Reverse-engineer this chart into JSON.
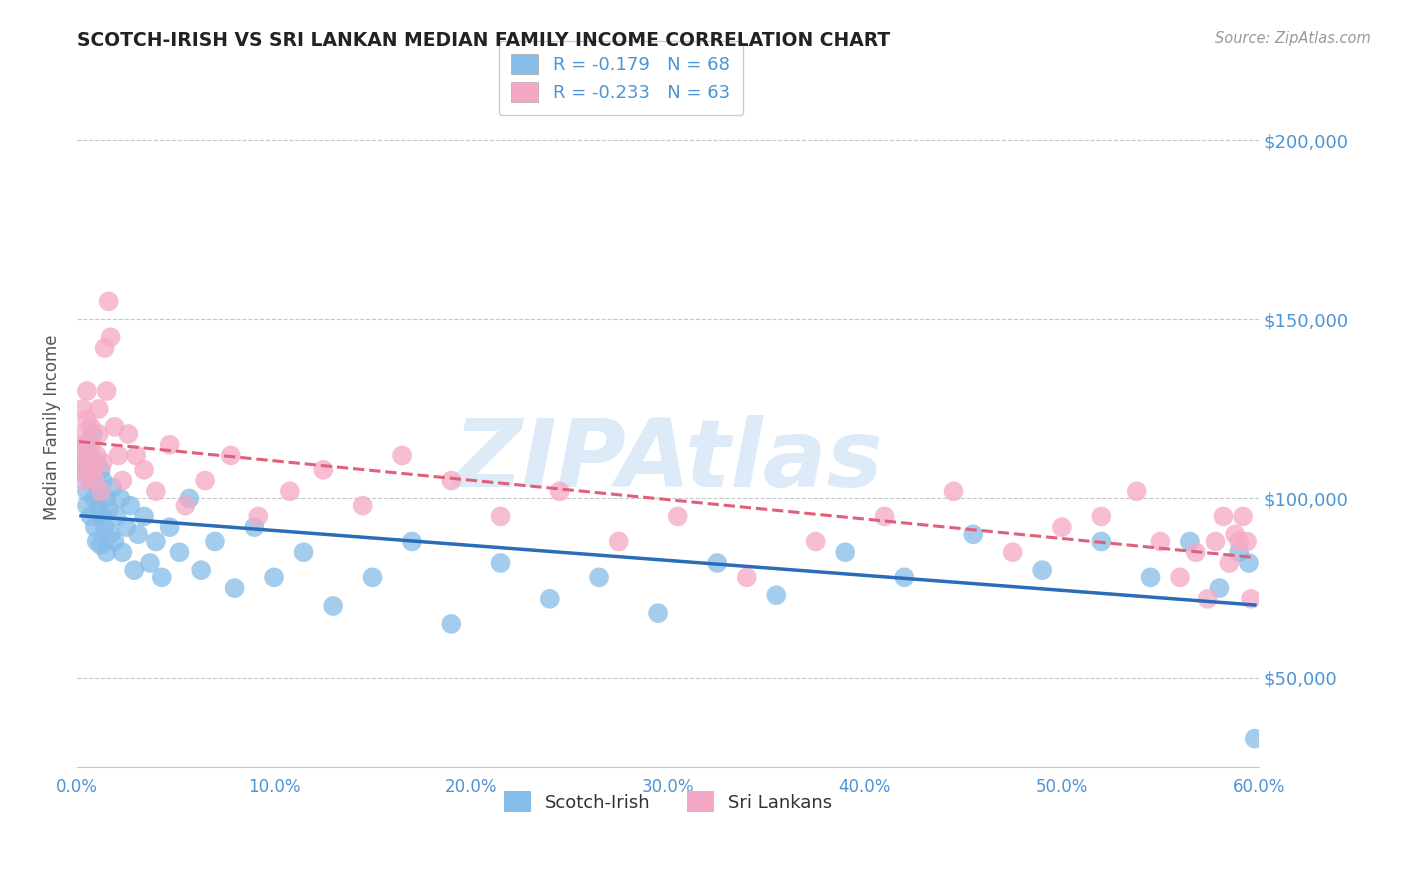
{
  "title": "SCOTCH-IRISH VS SRI LANKAN MEDIAN FAMILY INCOME CORRELATION CHART",
  "source": "Source: ZipAtlas.com",
  "ylabel": "Median Family Income",
  "xmin": 0.0,
  "xmax": 0.6,
  "ymin": 25000,
  "ymax": 215000,
  "yticks": [
    50000,
    100000,
    150000,
    200000
  ],
  "xticks": [
    0.0,
    0.1,
    0.2,
    0.3,
    0.4,
    0.5,
    0.6
  ],
  "xtick_labels": [
    "0.0%",
    "10.0%",
    "20.0%",
    "30.0%",
    "40.0%",
    "50.0%",
    "60.0%"
  ],
  "ytick_labels": [
    "$50,000",
    "$100,000",
    "$150,000",
    "$200,000"
  ],
  "scotch_irish_color": "#85bce8",
  "sri_lankan_color": "#f5a8c5",
  "scotch_irish_line_color": "#2b6cb8",
  "sri_lankan_line_color": "#e0607a",
  "R_scotch": -0.179,
  "N_scotch": 68,
  "R_sri": -0.233,
  "N_sri": 63,
  "watermark": "ZIPAtlas",
  "background_color": "#ffffff",
  "grid_color": "#c8c8c8",
  "tick_label_color": "#4d94d5",
  "title_color": "#222222",
  "source_color": "#999999",
  "ylabel_color": "#555555",
  "scotch_irish_x": [
    0.002,
    0.003,
    0.004,
    0.005,
    0.005,
    0.006,
    0.007,
    0.007,
    0.008,
    0.008,
    0.009,
    0.009,
    0.01,
    0.01,
    0.011,
    0.011,
    0.012,
    0.012,
    0.013,
    0.013,
    0.014,
    0.015,
    0.015,
    0.016,
    0.017,
    0.018,
    0.019,
    0.02,
    0.022,
    0.023,
    0.025,
    0.027,
    0.029,
    0.031,
    0.034,
    0.037,
    0.04,
    0.043,
    0.047,
    0.052,
    0.057,
    0.063,
    0.07,
    0.08,
    0.09,
    0.1,
    0.115,
    0.13,
    0.15,
    0.17,
    0.19,
    0.215,
    0.24,
    0.265,
    0.295,
    0.325,
    0.355,
    0.39,
    0.42,
    0.455,
    0.49,
    0.52,
    0.545,
    0.565,
    0.58,
    0.59,
    0.595,
    0.598
  ],
  "scotch_irish_y": [
    110000,
    107000,
    115000,
    102000,
    98000,
    108000,
    112000,
    95000,
    105000,
    118000,
    100000,
    92000,
    110000,
    88000,
    103000,
    97000,
    108000,
    87000,
    95000,
    105000,
    92000,
    100000,
    85000,
    97000,
    90000,
    103000,
    88000,
    95000,
    100000,
    85000,
    92000,
    98000,
    80000,
    90000,
    95000,
    82000,
    88000,
    78000,
    92000,
    85000,
    100000,
    80000,
    88000,
    75000,
    92000,
    78000,
    85000,
    70000,
    78000,
    88000,
    65000,
    82000,
    72000,
    78000,
    68000,
    82000,
    73000,
    85000,
    78000,
    90000,
    80000,
    88000,
    78000,
    88000,
    75000,
    85000,
    82000,
    33000
  ],
  "sri_lankan_x": [
    0.001,
    0.002,
    0.003,
    0.003,
    0.004,
    0.004,
    0.005,
    0.005,
    0.006,
    0.007,
    0.007,
    0.008,
    0.009,
    0.01,
    0.011,
    0.011,
    0.012,
    0.013,
    0.014,
    0.015,
    0.016,
    0.017,
    0.019,
    0.021,
    0.023,
    0.026,
    0.03,
    0.034,
    0.04,
    0.047,
    0.055,
    0.065,
    0.078,
    0.092,
    0.108,
    0.125,
    0.145,
    0.165,
    0.19,
    0.215,
    0.245,
    0.275,
    0.305,
    0.34,
    0.375,
    0.41,
    0.445,
    0.475,
    0.5,
    0.52,
    0.538,
    0.55,
    0.56,
    0.568,
    0.574,
    0.578,
    0.582,
    0.585,
    0.588,
    0.59,
    0.592,
    0.594,
    0.596
  ],
  "sri_lankan_y": [
    112000,
    118000,
    105000,
    125000,
    115000,
    108000,
    122000,
    130000,
    110000,
    120000,
    115000,
    108000,
    105000,
    112000,
    125000,
    118000,
    102000,
    110000,
    142000,
    130000,
    155000,
    145000,
    120000,
    112000,
    105000,
    118000,
    112000,
    108000,
    102000,
    115000,
    98000,
    105000,
    112000,
    95000,
    102000,
    108000,
    98000,
    112000,
    105000,
    95000,
    102000,
    88000,
    95000,
    78000,
    88000,
    95000,
    102000,
    85000,
    92000,
    95000,
    102000,
    88000,
    78000,
    85000,
    72000,
    88000,
    95000,
    82000,
    90000,
    88000,
    95000,
    88000,
    72000
  ]
}
